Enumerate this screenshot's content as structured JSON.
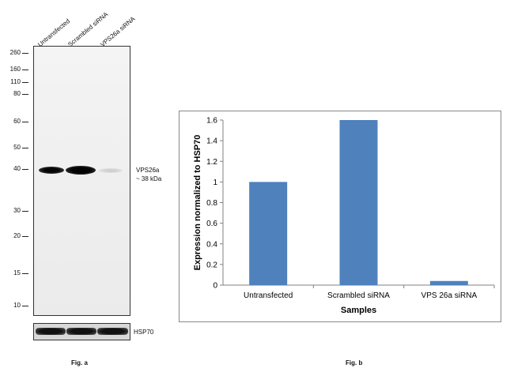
{
  "fig_a": {
    "lanes": [
      "Untransfected",
      "Scrambled siRNA",
      "VPS26a siRNA"
    ],
    "mw_markers": [
      "260",
      "160",
      "110",
      "80",
      "60",
      "50",
      "40",
      "30",
      "20",
      "15",
      "10"
    ],
    "band_label_1": "VPS26a",
    "band_label_2": "~ 38 kDa",
    "loading_label": "HSP70",
    "caption": "Fig. a"
  },
  "fig_b": {
    "caption": "Fig. b"
  },
  "chart_data": {
    "type": "bar",
    "categories": [
      "Untransfected",
      "Scrambled siRNA",
      "VPS 26a siRNA"
    ],
    "values": [
      1.0,
      1.6,
      0.04
    ],
    "title": "",
    "xlabel": "Samples",
    "ylabel": "Expression normalized to HSP70",
    "ylim": [
      0,
      1.6
    ],
    "yticks": [
      "0",
      "0.2",
      "0.4",
      "0.6",
      "0.8",
      "1",
      "1.2",
      "1.4",
      "1.6"
    ],
    "grid": false,
    "bar_color": "#4f81bd"
  }
}
